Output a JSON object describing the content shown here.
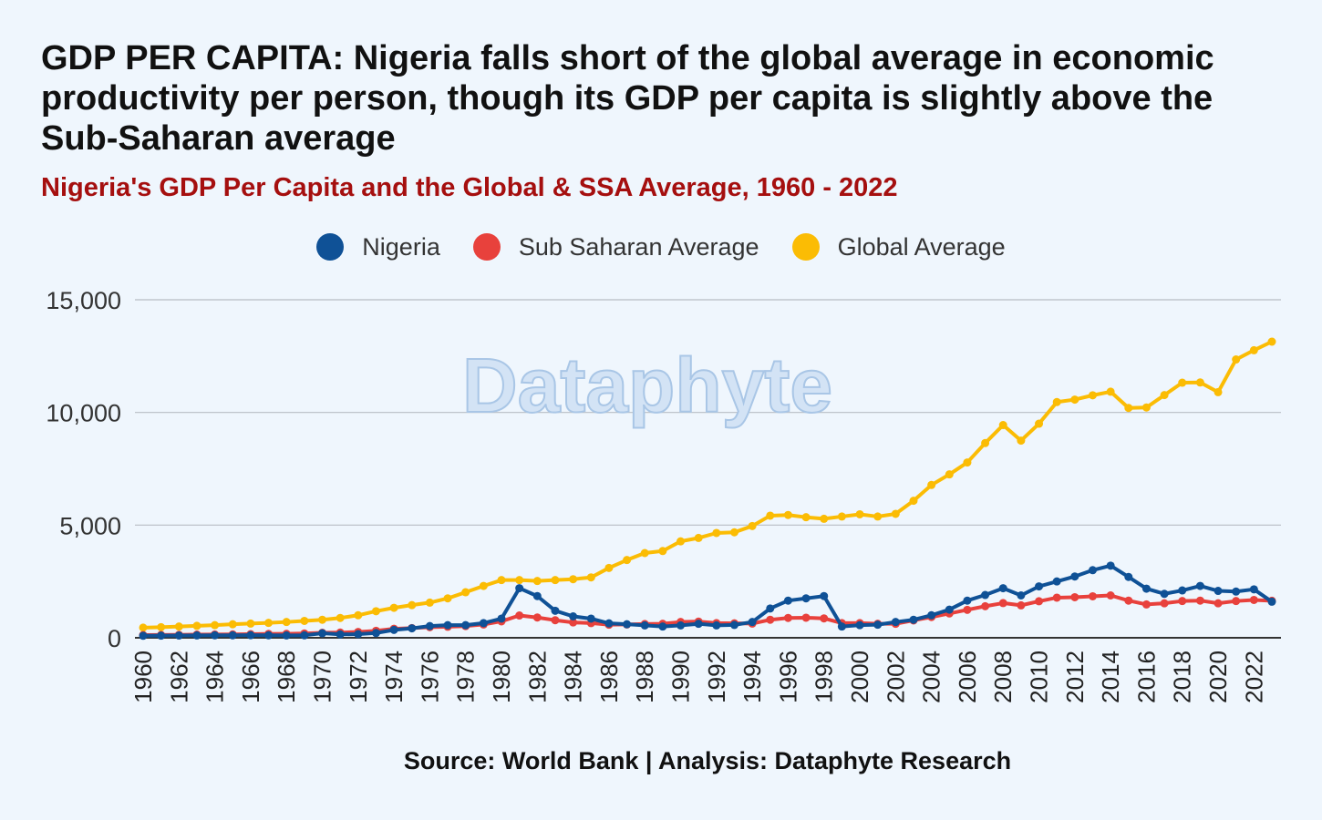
{
  "title": "GDP PER CAPITA: Nigeria falls short of the global average in economic productivity per person, though its GDP per capita is slightly above the Sub-Saharan average",
  "subtitle": "Nigeria's GDP Per Capita and the Global & SSA Average, 1960 - 2022",
  "watermark": "Dataphyte",
  "source": "Source: World Bank | Analysis: Dataphyte Research",
  "chart_data": {
    "type": "line",
    "xlabel": "",
    "ylabel": "",
    "ylim": [
      0,
      15000
    ],
    "yticks": [
      0,
      5000,
      10000,
      15000
    ],
    "ytick_labels": [
      "0",
      "5,000",
      "10,000",
      "15,000"
    ],
    "xtick_labels": [
      "1960",
      "1962",
      "1964",
      "1966",
      "1968",
      "1970",
      "1972",
      "1974",
      "1976",
      "1978",
      "1980",
      "1982",
      "1984",
      "1986",
      "1988",
      "1990",
      "1992",
      "1994",
      "1996",
      "1998",
      "2000",
      "2002",
      "2004",
      "2006",
      "2008",
      "2010",
      "2012",
      "2014",
      "2016",
      "2018",
      "2020",
      "2022"
    ],
    "x": [
      1960,
      1961,
      1962,
      1963,
      1964,
      1965,
      1966,
      1967,
      1968,
      1969,
      1970,
      1971,
      1972,
      1973,
      1974,
      1975,
      1976,
      1977,
      1978,
      1979,
      1980,
      1981,
      1982,
      1983,
      1984,
      1985,
      1986,
      1987,
      1988,
      1989,
      1990,
      1991,
      1992,
      1993,
      1994,
      1995,
      1996,
      1997,
      1998,
      1999,
      2000,
      2001,
      2002,
      2003,
      2004,
      2005,
      2006,
      2007,
      2008,
      2009,
      2010,
      2011,
      2012,
      2013,
      2014,
      2015,
      2016,
      2017,
      2018,
      2019,
      2020,
      2021,
      2022,
      2023
    ],
    "grid": true,
    "legend_position": "top-center",
    "series": [
      {
        "name": "Nigeria",
        "color": "#0f5196",
        "values": [
          90,
          95,
          100,
          105,
          110,
          110,
          115,
          110,
          105,
          110,
          200,
          150,
          160,
          210,
          350,
          420,
          520,
          560,
          560,
          650,
          850,
          2200,
          1850,
          1200,
          950,
          850,
          640,
          600,
          550,
          500,
          550,
          620,
          550,
          570,
          700,
          1300,
          1650,
          1750,
          1850,
          500,
          560,
          580,
          700,
          800,
          1000,
          1250,
          1650,
          1900,
          2200,
          1880,
          2280,
          2500,
          2720,
          3000,
          3200,
          2700,
          2180,
          1950,
          2100,
          2300,
          2080,
          2050,
          2150,
          1600
        ]
      },
      {
        "name": "Sub Saharan Average",
        "color": "#e8413c",
        "values": [
          120,
          125,
          130,
          140,
          145,
          150,
          160,
          170,
          175,
          190,
          220,
          230,
          260,
          310,
          400,
          430,
          470,
          490,
          520,
          590,
          730,
          990,
          900,
          780,
          680,
          650,
          580,
          590,
          610,
          620,
          700,
          720,
          650,
          640,
          630,
          800,
          880,
          890,
          860,
          650,
          650,
          620,
          620,
          770,
          920,
          1080,
          1240,
          1400,
          1540,
          1440,
          1620,
          1780,
          1800,
          1840,
          1880,
          1650,
          1480,
          1530,
          1630,
          1650,
          1530,
          1630,
          1680,
          1640
        ]
      },
      {
        "name": "Global Average",
        "color": "#fbbc04",
        "values": [
          450,
          470,
          500,
          530,
          560,
          600,
          630,
          660,
          700,
          750,
          800,
          880,
          1000,
          1180,
          1330,
          1450,
          1560,
          1750,
          2020,
          2300,
          2560,
          2560,
          2520,
          2560,
          2600,
          2680,
          3100,
          3450,
          3760,
          3850,
          4280,
          4430,
          4650,
          4680,
          4960,
          5420,
          5450,
          5350,
          5280,
          5380,
          5480,
          5380,
          5500,
          6080,
          6780,
          7250,
          7780,
          8640,
          9440,
          8750,
          9500,
          10460,
          10570,
          10760,
          10920,
          10200,
          10220,
          10770,
          11320,
          11330,
          10900,
          12350,
          12760,
          13140
        ]
      }
    ]
  }
}
